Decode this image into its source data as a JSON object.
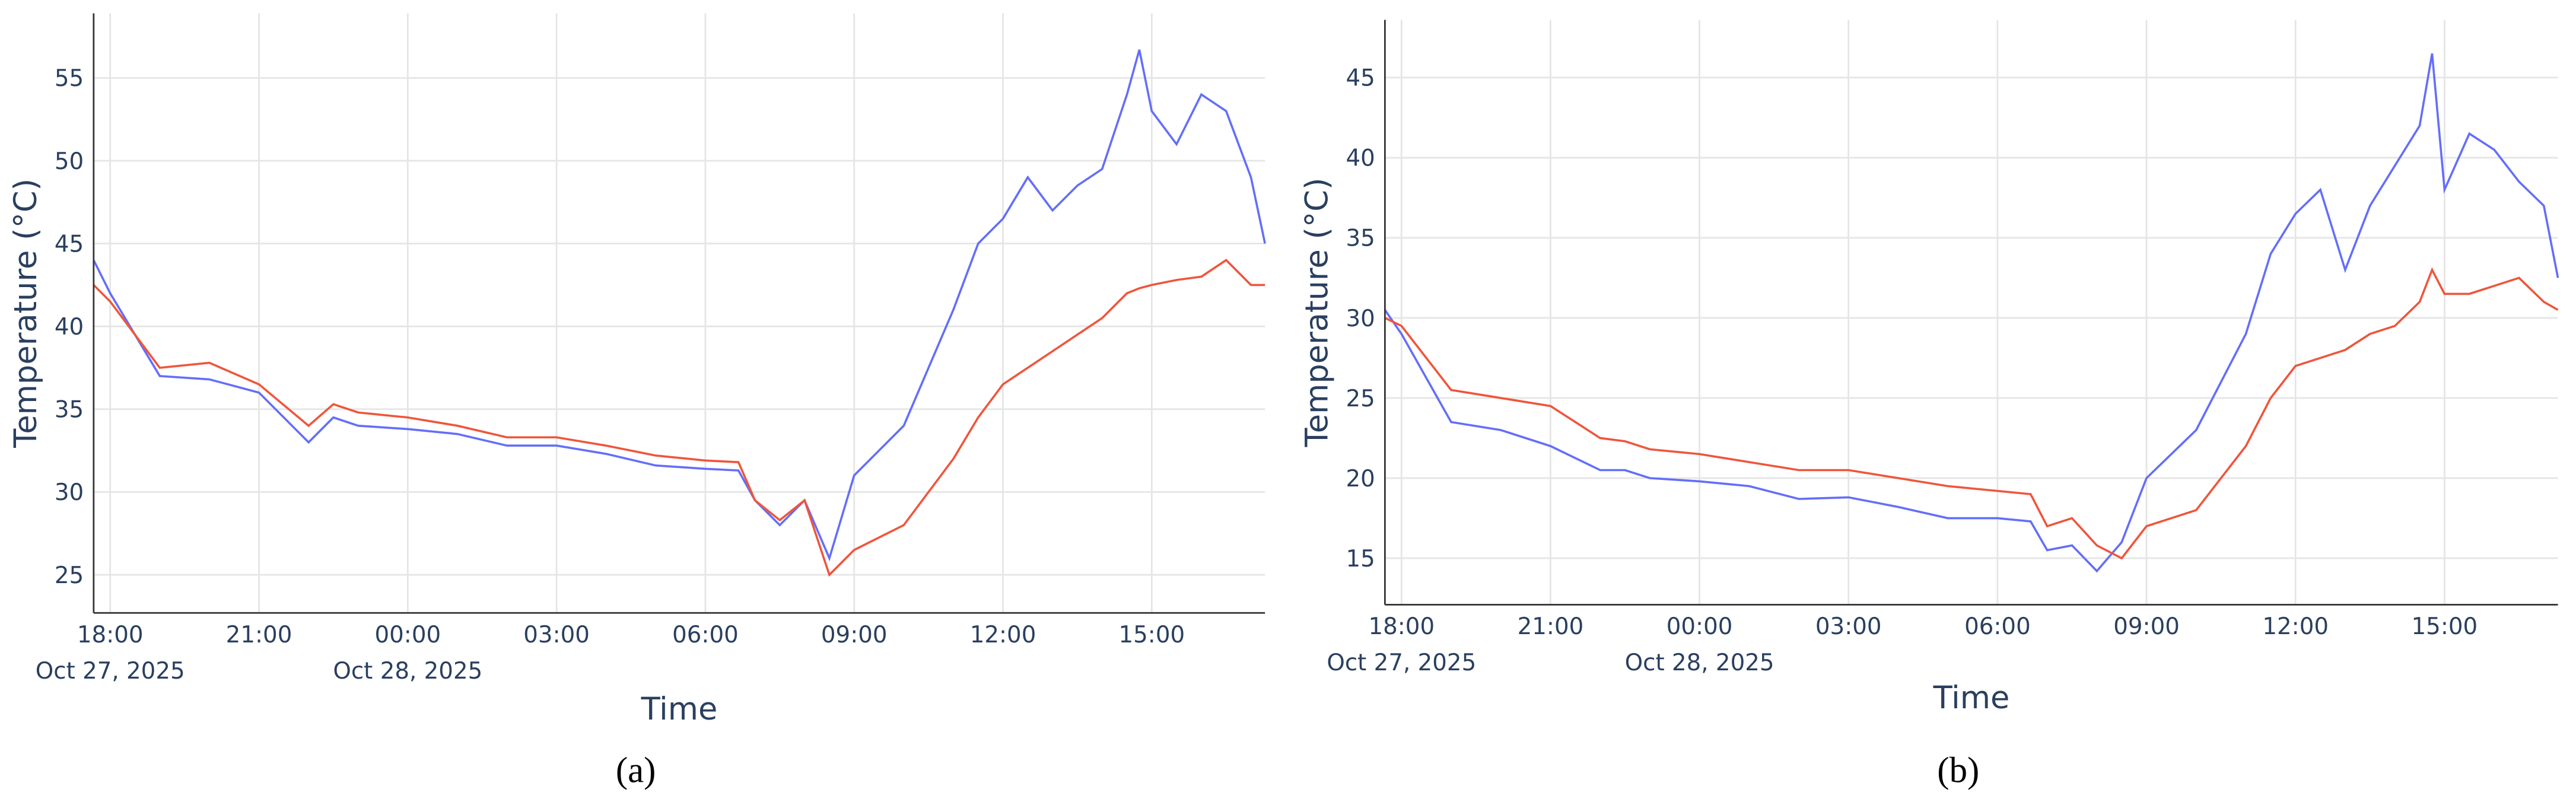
{
  "chart_data": [
    {
      "type": "line",
      "caption": "(a)",
      "xlabel": "Time",
      "ylabel": "Temperature (°C)",
      "grid": true,
      "x": [
        "2025-10-27 17:40",
        "2025-10-27 18:00",
        "2025-10-27 19:00",
        "2025-10-27 20:00",
        "2025-10-27 21:00",
        "2025-10-27 22:00",
        "2025-10-27 22:30",
        "2025-10-27 23:00",
        "2025-10-28 00:00",
        "2025-10-28 01:00",
        "2025-10-28 02:00",
        "2025-10-28 03:00",
        "2025-10-28 04:00",
        "2025-10-28 05:00",
        "2025-10-28 06:00",
        "2025-10-28 06:40",
        "2025-10-28 07:00",
        "2025-10-28 07:30",
        "2025-10-28 08:00",
        "2025-10-28 08:30",
        "2025-10-28 09:00",
        "2025-10-28 10:00",
        "2025-10-28 11:00",
        "2025-10-28 11:30",
        "2025-10-28 12:00",
        "2025-10-28 12:30",
        "2025-10-28 13:00",
        "2025-10-28 13:30",
        "2025-10-28 14:00",
        "2025-10-28 14:30",
        "2025-10-28 14:45",
        "2025-10-28 15:00",
        "2025-10-28 15:30",
        "2025-10-28 16:00",
        "2025-10-28 16:30",
        "2025-10-28 17:00",
        "2025-10-28 17:17"
      ],
      "series": [
        {
          "color": "#636efa",
          "values": [
            44,
            42,
            37,
            36.8,
            36,
            33,
            34.5,
            34,
            33.8,
            33.5,
            32.8,
            32.8,
            32.3,
            31.6,
            31.4,
            31.3,
            29.5,
            28,
            29.5,
            26,
            31,
            34,
            41,
            45,
            46.5,
            49,
            47,
            48.5,
            49.5,
            54,
            56.7,
            53,
            51,
            54,
            53,
            49,
            45
          ]
        },
        {
          "color": "#ef553b",
          "values": [
            42.5,
            41.5,
            37.5,
            37.8,
            36.5,
            34,
            35.3,
            34.8,
            34.5,
            34,
            33.3,
            33.3,
            32.8,
            32.2,
            31.9,
            31.8,
            29.5,
            28.3,
            29.5,
            25,
            26.5,
            28,
            32,
            34.5,
            36.5,
            37.5,
            38.5,
            39.5,
            40.5,
            42,
            42.3,
            42.5,
            42.8,
            43,
            44,
            42.5,
            42.5
          ]
        }
      ],
      "xlim": [
        "2025-10-27 17:40",
        "2025-10-28 17:17"
      ],
      "xticks": [
        {
          "value": "2025-10-27 18:00",
          "label": "18:00"
        },
        {
          "value": "2025-10-27 21:00",
          "label": "21:00"
        },
        {
          "value": "2025-10-28 00:00",
          "label": "00:00"
        },
        {
          "value": "2025-10-28 03:00",
          "label": "03:00"
        },
        {
          "value": "2025-10-28 06:00",
          "label": "06:00"
        },
        {
          "value": "2025-10-28 09:00",
          "label": "09:00"
        },
        {
          "value": "2025-10-28 12:00",
          "label": "12:00"
        },
        {
          "value": "2025-10-28 15:00",
          "label": "15:00"
        }
      ],
      "xtick_dates": [
        {
          "value": "2025-10-27 18:00",
          "label": "Oct 27, 2025"
        },
        {
          "value": "2025-10-28 00:00",
          "label": "Oct 28, 2025"
        }
      ],
      "ylim": [
        22.7,
        58.9
      ],
      "yticks": [
        25,
        30,
        35,
        40,
        45,
        50,
        55
      ]
    },
    {
      "type": "line",
      "caption": "(b)",
      "xlabel": "Time",
      "ylabel": "Temperature (°C)",
      "grid": true,
      "x": [
        "2025-10-27 17:40",
        "2025-10-27 18:00",
        "2025-10-27 19:00",
        "2025-10-27 20:00",
        "2025-10-27 21:00",
        "2025-10-27 22:00",
        "2025-10-27 22:30",
        "2025-10-27 23:00",
        "2025-10-28 00:00",
        "2025-10-28 01:00",
        "2025-10-28 02:00",
        "2025-10-28 03:00",
        "2025-10-28 04:00",
        "2025-10-28 05:00",
        "2025-10-28 06:00",
        "2025-10-28 06:40",
        "2025-10-28 07:00",
        "2025-10-28 07:30",
        "2025-10-28 08:00",
        "2025-10-28 08:30",
        "2025-10-28 09:00",
        "2025-10-28 10:00",
        "2025-10-28 11:00",
        "2025-10-28 11:30",
        "2025-10-28 12:00",
        "2025-10-28 12:30",
        "2025-10-28 13:00",
        "2025-10-28 13:30",
        "2025-10-28 14:00",
        "2025-10-28 14:30",
        "2025-10-28 14:45",
        "2025-10-28 15:00",
        "2025-10-28 15:30",
        "2025-10-28 16:00",
        "2025-10-28 16:30",
        "2025-10-28 17:00",
        "2025-10-28 17:17"
      ],
      "series": [
        {
          "color": "#636efa",
          "values": [
            30.5,
            29,
            23.5,
            23,
            22,
            20.5,
            20.5,
            20,
            19.8,
            19.5,
            18.7,
            18.8,
            18.2,
            17.5,
            17.5,
            17.3,
            15.5,
            15.8,
            14.2,
            16,
            20,
            23,
            29,
            34,
            36.5,
            38,
            33,
            37,
            39.5,
            42,
            46.5,
            38,
            41.5,
            40.5,
            38.5,
            37,
            32.5
          ]
        },
        {
          "color": "#ef553b",
          "values": [
            30,
            29.5,
            25.5,
            25,
            24.5,
            22.5,
            22.3,
            21.8,
            21.5,
            21,
            20.5,
            20.5,
            20,
            19.5,
            19.2,
            19,
            17,
            17.5,
            15.8,
            15,
            17,
            18,
            22,
            25,
            27,
            27.5,
            28,
            29,
            29.5,
            31,
            33,
            31.5,
            31.5,
            32,
            32.5,
            31,
            30.5
          ]
        }
      ],
      "xlim": [
        "2025-10-27 17:40",
        "2025-10-28 17:17"
      ],
      "xticks": [
        {
          "value": "2025-10-27 18:00",
          "label": "18:00"
        },
        {
          "value": "2025-10-27 21:00",
          "label": "21:00"
        },
        {
          "value": "2025-10-28 00:00",
          "label": "00:00"
        },
        {
          "value": "2025-10-28 03:00",
          "label": "03:00"
        },
        {
          "value": "2025-10-28 06:00",
          "label": "06:00"
        },
        {
          "value": "2025-10-28 09:00",
          "label": "09:00"
        },
        {
          "value": "2025-10-28 12:00",
          "label": "12:00"
        },
        {
          "value": "2025-10-28 15:00",
          "label": "15:00"
        }
      ],
      "xtick_dates": [
        {
          "value": "2025-10-27 18:00",
          "label": "Oct 27, 2025"
        },
        {
          "value": "2025-10-28 00:00",
          "label": "Oct 28, 2025"
        }
      ],
      "ylim": [
        12.1,
        48.6
      ],
      "yticks": [
        15,
        20,
        25,
        30,
        35,
        40,
        45
      ]
    }
  ]
}
